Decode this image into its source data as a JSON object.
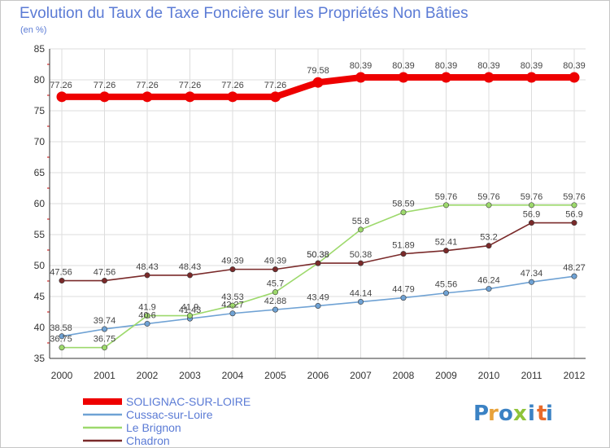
{
  "colors": {
    "frame": "#c6c6c6",
    "grid": "#dddddd",
    "ticks": "#cc0000",
    "title": "#5b7bd5"
  },
  "chart_data": {
    "type": "line",
    "title": "Evolution du Taux de Taxe Foncière sur les Propriétés Non Bâties",
    "ylabel": "(en %)",
    "xlabel": "",
    "x": [
      "2000",
      "2001",
      "2002",
      "2003",
      "2004",
      "2005",
      "2006",
      "2007",
      "2008",
      "2009",
      "2010",
      "2011",
      "2012"
    ],
    "ylim": [
      35,
      85
    ],
    "yticks": [
      "35",
      "40",
      "45",
      "50",
      "55",
      "60",
      "65",
      "70",
      "75",
      "80",
      "85"
    ],
    "grid": true,
    "legend_position": "bottom-left",
    "series": [
      {
        "name": "SOLIGNAC-SUR-LOIRE",
        "color": "#ee0000",
        "values": [
          77.26,
          77.26,
          77.26,
          77.26,
          77.26,
          77.26,
          79.58,
          80.39,
          80.39,
          80.39,
          80.39,
          80.39,
          80.39
        ],
        "labels": [
          "77.26",
          "77.26",
          "77.26",
          "77.26",
          "77.26",
          "77.26",
          "79.58",
          "80.39",
          "80.39",
          "80.39",
          "80.39",
          "80.39",
          "80.39"
        ]
      },
      {
        "name": "Cussac-sur-Loire",
        "color": "#6fa2d4",
        "values": [
          38.58,
          39.74,
          40.6,
          41.43,
          42.27,
          42.88,
          43.49,
          44.14,
          44.79,
          45.56,
          46.24,
          47.34,
          48.27
        ],
        "labels": [
          "38.58",
          "39.74",
          "40.6",
          "41.43",
          "42.27",
          "42.88",
          "43.49",
          "44.14",
          "44.79",
          "45.56",
          "46.24",
          "47.34",
          "48.27"
        ]
      },
      {
        "name": "Le Brignon",
        "color": "#9dd96c",
        "values": [
          36.75,
          36.75,
          41.9,
          41.9,
          43.53,
          45.7,
          50.38,
          55.8,
          58.59,
          59.76,
          59.76,
          59.76,
          59.76
        ],
        "labels": [
          "36.75",
          "36.75",
          "41.9",
          "41.9",
          "43.53",
          "45.7",
          "50.38",
          "55.8",
          "58.59",
          "59.76",
          "59.76",
          "59.76",
          "59.76"
        ]
      },
      {
        "name": "Chadron",
        "color": "#7a2a2a",
        "values": [
          47.56,
          47.56,
          48.43,
          48.43,
          49.39,
          49.39,
          50.38,
          50.38,
          51.89,
          52.41,
          53.2,
          56.9,
          56.9
        ],
        "labels": [
          "47.56",
          "47.56",
          "48.43",
          "48.43",
          "49.39",
          "49.39",
          "50.38",
          "50.38",
          "51.89",
          "52.41",
          "53.2",
          "56.9",
          "56.9"
        ]
      }
    ]
  },
  "logo": {
    "letters": [
      "P",
      "r",
      "o",
      "x",
      "i",
      "t",
      "i"
    ],
    "colors": [
      "#3b82c4",
      "#e8a23a",
      "#3b82c4",
      "#8fc43a",
      "#3b82c4",
      "#e86a2a",
      "#3b82c4"
    ]
  }
}
